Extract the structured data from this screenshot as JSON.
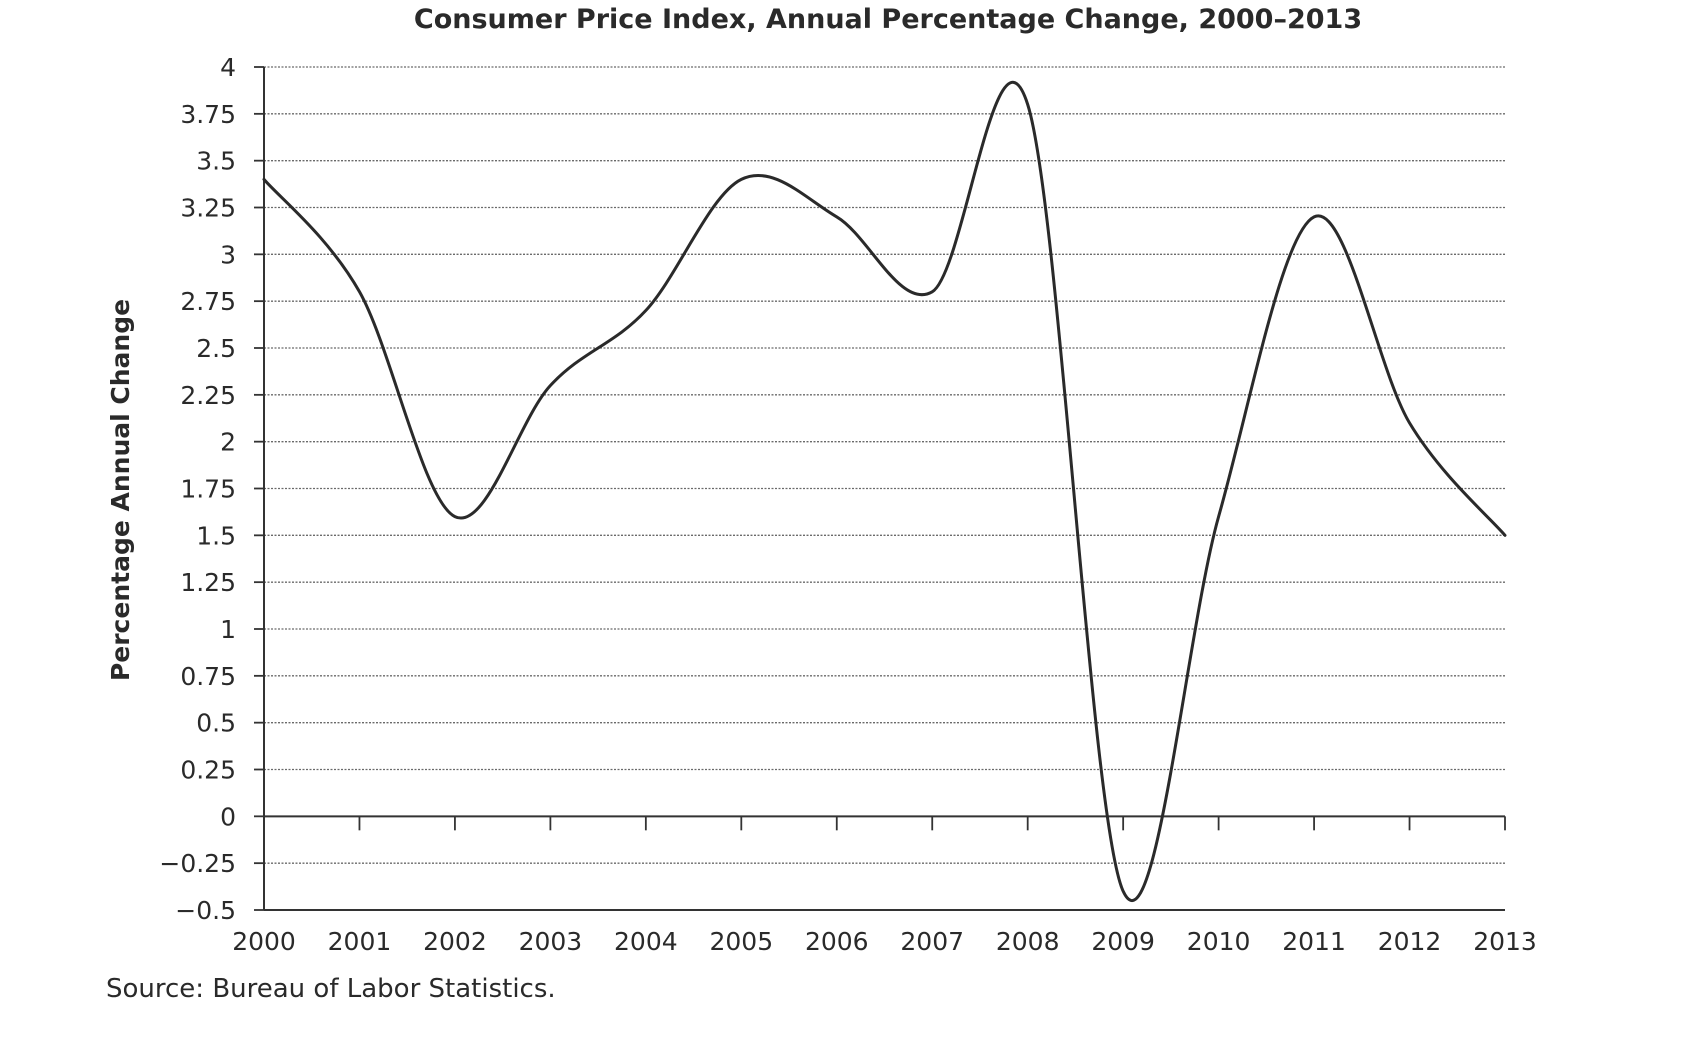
{
  "chart_data": {
    "type": "line",
    "title": "Consumer Price Index, Annual Percentage Change, 2000–2013",
    "xlabel": "",
    "ylabel": "Percentage Annual Change",
    "x": [
      "2000",
      "2001",
      "2002",
      "2003",
      "2004",
      "2005",
      "2006",
      "2007",
      "2008",
      "2009",
      "2010",
      "2011",
      "2012",
      "2013"
    ],
    "series": [
      {
        "values": [
          3.4,
          2.8,
          1.6,
          2.3,
          2.7,
          3.4,
          3.2,
          2.8,
          3.8,
          -0.4,
          1.6,
          3.2,
          2.1,
          1.5
        ],
        "color": "#2a2a2a"
      }
    ],
    "ylim": [
      -0.5,
      4
    ],
    "yticks": [
      "4",
      "3.75",
      "3.5",
      "3.25",
      "3",
      "2.75",
      "2.5",
      "2.25",
      "2",
      "1.75",
      "1.5",
      "1.25",
      "1",
      "0.75",
      "0.5",
      "0.25",
      "0",
      "−0.25",
      "−0.5"
    ],
    "ytick_values": [
      4,
      3.75,
      3.5,
      3.25,
      3,
      2.75,
      2.5,
      2.25,
      2,
      1.75,
      1.5,
      1.25,
      1,
      0.75,
      0.5,
      0.25,
      0,
      -0.25,
      -0.5
    ],
    "grid": true,
    "smooth": true,
    "source": "Source: Bureau of Labor Statistics."
  }
}
